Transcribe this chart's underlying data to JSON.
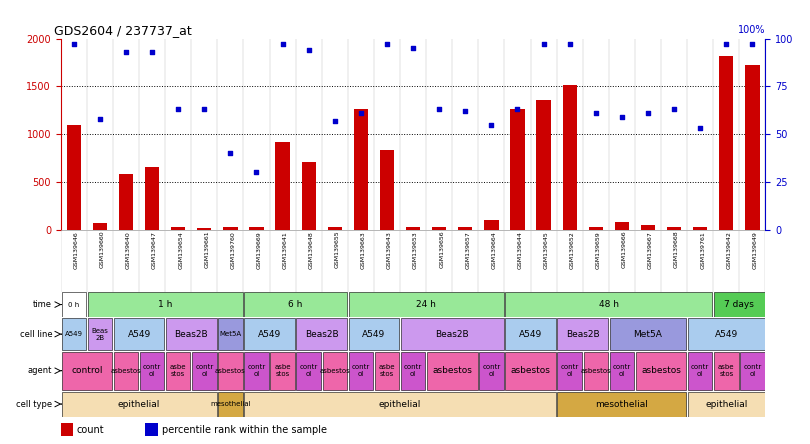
{
  "title": "GDS2604 / 237737_at",
  "gsm_labels": [
    "GSM139646",
    "GSM139660",
    "GSM139640",
    "GSM139647",
    "GSM139654",
    "GSM139661",
    "GSM139760",
    "GSM139669",
    "GSM139641",
    "GSM139648",
    "GSM139655",
    "GSM139663",
    "GSM139643",
    "GSM139653",
    "GSM139656",
    "GSM139657",
    "GSM139664",
    "GSM139644",
    "GSM139645",
    "GSM139652",
    "GSM139659",
    "GSM139666",
    "GSM139667",
    "GSM139668",
    "GSM139761",
    "GSM139642",
    "GSM139649"
  ],
  "bar_values": [
    1100,
    70,
    580,
    650,
    30,
    20,
    25,
    30,
    920,
    710,
    30,
    1260,
    830,
    30,
    30,
    30,
    100,
    1260,
    1360,
    1510,
    30,
    80,
    50,
    30,
    30,
    1820,
    1720
  ],
  "dot_values": [
    97,
    58,
    93,
    93,
    63,
    63,
    40,
    30,
    97,
    94,
    57,
    61,
    97,
    95,
    63,
    62,
    55,
    63,
    97,
    97,
    61,
    59,
    61,
    63,
    53,
    97,
    97
  ],
  "ylim_left": [
    0,
    2000
  ],
  "ylim_right": [
    0,
    100
  ],
  "yticks_left": [
    0,
    500,
    1000,
    1500,
    2000
  ],
  "yticks_right": [
    0,
    25,
    50,
    75,
    100
  ],
  "time_groups": [
    {
      "label": "0 h",
      "start": 0,
      "end": 1,
      "color": "#ffffff"
    },
    {
      "label": "1 h",
      "start": 1,
      "end": 7,
      "color": "#98e898"
    },
    {
      "label": "6 h",
      "start": 7,
      "end": 11,
      "color": "#98e898"
    },
    {
      "label": "24 h",
      "start": 11,
      "end": 17,
      "color": "#98e898"
    },
    {
      "label": "48 h",
      "start": 17,
      "end": 25,
      "color": "#98e898"
    },
    {
      "label": "7 days",
      "start": 25,
      "end": 27,
      "color": "#55cc55"
    }
  ],
  "cell_line_groups": [
    {
      "label": "A549",
      "start": 0,
      "end": 1,
      "color": "#aaccee"
    },
    {
      "label": "Beas\n2B",
      "start": 1,
      "end": 2,
      "color": "#cc99ee"
    },
    {
      "label": "A549",
      "start": 2,
      "end": 4,
      "color": "#aaccee"
    },
    {
      "label": "Beas2B",
      "start": 4,
      "end": 6,
      "color": "#cc99ee"
    },
    {
      "label": "Met5A",
      "start": 6,
      "end": 7,
      "color": "#9999dd"
    },
    {
      "label": "A549",
      "start": 7,
      "end": 9,
      "color": "#aaccee"
    },
    {
      "label": "Beas2B",
      "start": 9,
      "end": 11,
      "color": "#cc99ee"
    },
    {
      "label": "A549",
      "start": 11,
      "end": 13,
      "color": "#aaccee"
    },
    {
      "label": "Beas2B",
      "start": 13,
      "end": 17,
      "color": "#cc99ee"
    },
    {
      "label": "A549",
      "start": 17,
      "end": 19,
      "color": "#aaccee"
    },
    {
      "label": "Beas2B",
      "start": 19,
      "end": 21,
      "color": "#cc99ee"
    },
    {
      "label": "Met5A",
      "start": 21,
      "end": 24,
      "color": "#9999dd"
    },
    {
      "label": "A549",
      "start": 24,
      "end": 27,
      "color": "#aaccee"
    }
  ],
  "agent_groups": [
    {
      "label": "control",
      "start": 0,
      "end": 2,
      "color": "#ee66aa"
    },
    {
      "label": "asbestos",
      "start": 2,
      "end": 3,
      "color": "#ee66aa"
    },
    {
      "label": "contr\nol",
      "start": 3,
      "end": 4,
      "color": "#cc55cc"
    },
    {
      "label": "asbe\nstos",
      "start": 4,
      "end": 5,
      "color": "#ee66aa"
    },
    {
      "label": "contr\nol",
      "start": 5,
      "end": 6,
      "color": "#cc55cc"
    },
    {
      "label": "asbestos",
      "start": 6,
      "end": 7,
      "color": "#ee66aa"
    },
    {
      "label": "contr\nol",
      "start": 7,
      "end": 8,
      "color": "#cc55cc"
    },
    {
      "label": "asbe\nstos",
      "start": 8,
      "end": 9,
      "color": "#ee66aa"
    },
    {
      "label": "contr\nol",
      "start": 9,
      "end": 10,
      "color": "#cc55cc"
    },
    {
      "label": "asbestos",
      "start": 10,
      "end": 11,
      "color": "#ee66aa"
    },
    {
      "label": "contr\nol",
      "start": 11,
      "end": 12,
      "color": "#cc55cc"
    },
    {
      "label": "asbe\nstos",
      "start": 12,
      "end": 13,
      "color": "#ee66aa"
    },
    {
      "label": "contr\nol",
      "start": 13,
      "end": 14,
      "color": "#cc55cc"
    },
    {
      "label": "asbestos",
      "start": 14,
      "end": 16,
      "color": "#ee66aa"
    },
    {
      "label": "contr\nol",
      "start": 16,
      "end": 17,
      "color": "#cc55cc"
    },
    {
      "label": "asbestos",
      "start": 17,
      "end": 19,
      "color": "#ee66aa"
    },
    {
      "label": "contr\nol",
      "start": 19,
      "end": 20,
      "color": "#cc55cc"
    },
    {
      "label": "asbestos",
      "start": 20,
      "end": 21,
      "color": "#ee66aa"
    },
    {
      "label": "contr\nol",
      "start": 21,
      "end": 22,
      "color": "#cc55cc"
    },
    {
      "label": "asbestos",
      "start": 22,
      "end": 24,
      "color": "#ee66aa"
    },
    {
      "label": "contr\nol",
      "start": 24,
      "end": 25,
      "color": "#cc55cc"
    },
    {
      "label": "asbe\nstos",
      "start": 25,
      "end": 26,
      "color": "#ee66aa"
    },
    {
      "label": "contr\nol",
      "start": 26,
      "end": 27,
      "color": "#cc55cc"
    }
  ],
  "cell_type_groups": [
    {
      "label": "epithelial",
      "start": 0,
      "end": 6,
      "color": "#f5deb3"
    },
    {
      "label": "mesothelial",
      "start": 6,
      "end": 7,
      "color": "#d4a843"
    },
    {
      "label": "epithelial",
      "start": 7,
      "end": 19,
      "color": "#f5deb3"
    },
    {
      "label": "mesothelial",
      "start": 19,
      "end": 24,
      "color": "#d4a843"
    },
    {
      "label": "epithelial",
      "start": 24,
      "end": 27,
      "color": "#f5deb3"
    }
  ],
  "bar_color": "#cc0000",
  "dot_color": "#0000cc",
  "left_axis_color": "#cc0000",
  "right_axis_color": "#0000cc",
  "background_color": "#ffffff",
  "legend_bar_label": "count",
  "legend_dot_label": "percentile rank within the sample"
}
